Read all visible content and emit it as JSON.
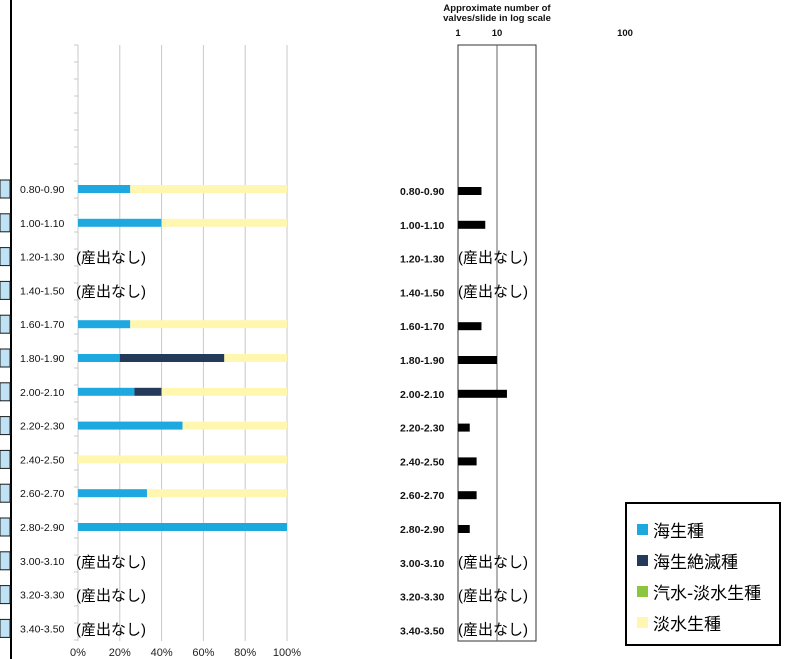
{
  "no_data_label": "(産出なし)",
  "chart_data": [
    {
      "type": "bar",
      "stacked": true,
      "orientation": "horizontal",
      "unit": "percent",
      "xlim": [
        0,
        100
      ],
      "x_ticks": [
        "0%",
        "20%",
        "40%",
        "60%",
        "80%",
        "100%"
      ],
      "grid": true,
      "categories": [
        "0.80-0.90",
        "1.00-1.10",
        "1.20-1.30",
        "1.40-1.50",
        "1.60-1.70",
        "1.80-1.90",
        "2.00-2.10",
        "2.20-2.30",
        "2.40-2.50",
        "2.60-2.70",
        "2.80-2.90",
        "3.00-3.10",
        "3.20-3.30",
        "3.40-3.50"
      ],
      "no_data": [
        false,
        false,
        true,
        true,
        false,
        false,
        false,
        false,
        false,
        false,
        false,
        true,
        true,
        true
      ],
      "series": [
        {
          "name": "海生種",
          "color": "#1ea8e0",
          "values": [
            25,
            40,
            0,
            0,
            25,
            20,
            27,
            50,
            0,
            33,
            100,
            0,
            0,
            0
          ]
        },
        {
          "name": "海生絶滅種",
          "color": "#243a5a",
          "values": [
            0,
            0,
            0,
            0,
            0,
            50,
            13,
            0,
            0,
            0,
            0,
            0,
            0,
            0
          ]
        },
        {
          "name": "汽水-淡水生種",
          "color": "#8cc63f",
          "values": [
            0,
            0,
            0,
            0,
            0,
            0,
            0,
            0,
            0,
            0,
            0,
            0,
            0,
            0
          ]
        },
        {
          "name": "淡水生種",
          "color": "#fff7b0",
          "values": [
            75,
            60,
            0,
            0,
            75,
            30,
            60,
            50,
            100,
            67,
            0,
            0,
            0,
            0
          ]
        }
      ]
    },
    {
      "type": "bar",
      "orientation": "horizontal",
      "scale": "log",
      "title": "Approximate number of valves/slide in log scale",
      "title_lines": [
        "Approximate number of",
        "valves/slide in log scale"
      ],
      "xlim": [
        1,
        100
      ],
      "x_ticks": [
        "1",
        "10",
        "100"
      ],
      "color": "#000000",
      "categories": [
        "0.80-0.90",
        "1.00-1.10",
        "1.20-1.30",
        "1.40-1.50",
        "1.60-1.70",
        "1.80-1.90",
        "2.00-2.10",
        "2.20-2.30",
        "2.40-2.50",
        "2.60-2.70",
        "2.80-2.90",
        "3.00-3.10",
        "3.20-3.30",
        "3.40-3.50"
      ],
      "no_data": [
        false,
        false,
        true,
        true,
        false,
        false,
        false,
        false,
        false,
        false,
        false,
        true,
        true,
        true
      ],
      "values": [
        4,
        5,
        0,
        0,
        4,
        10,
        18,
        2,
        3,
        3,
        2,
        0,
        0,
        0
      ]
    }
  ],
  "legend": {
    "items": [
      {
        "label": "海生種",
        "color": "#1ea8e0"
      },
      {
        "label": "海生絶滅種",
        "color": "#243a5a"
      },
      {
        "label": "汽水-淡水生種",
        "color": "#8cc63f"
      },
      {
        "label": "淡水生種",
        "color": "#fff7b0"
      }
    ]
  },
  "colors": {
    "grid": "#c8c8c8",
    "strip_fill": "#bfe3f5",
    "strip_border": "#1a1a1a"
  }
}
